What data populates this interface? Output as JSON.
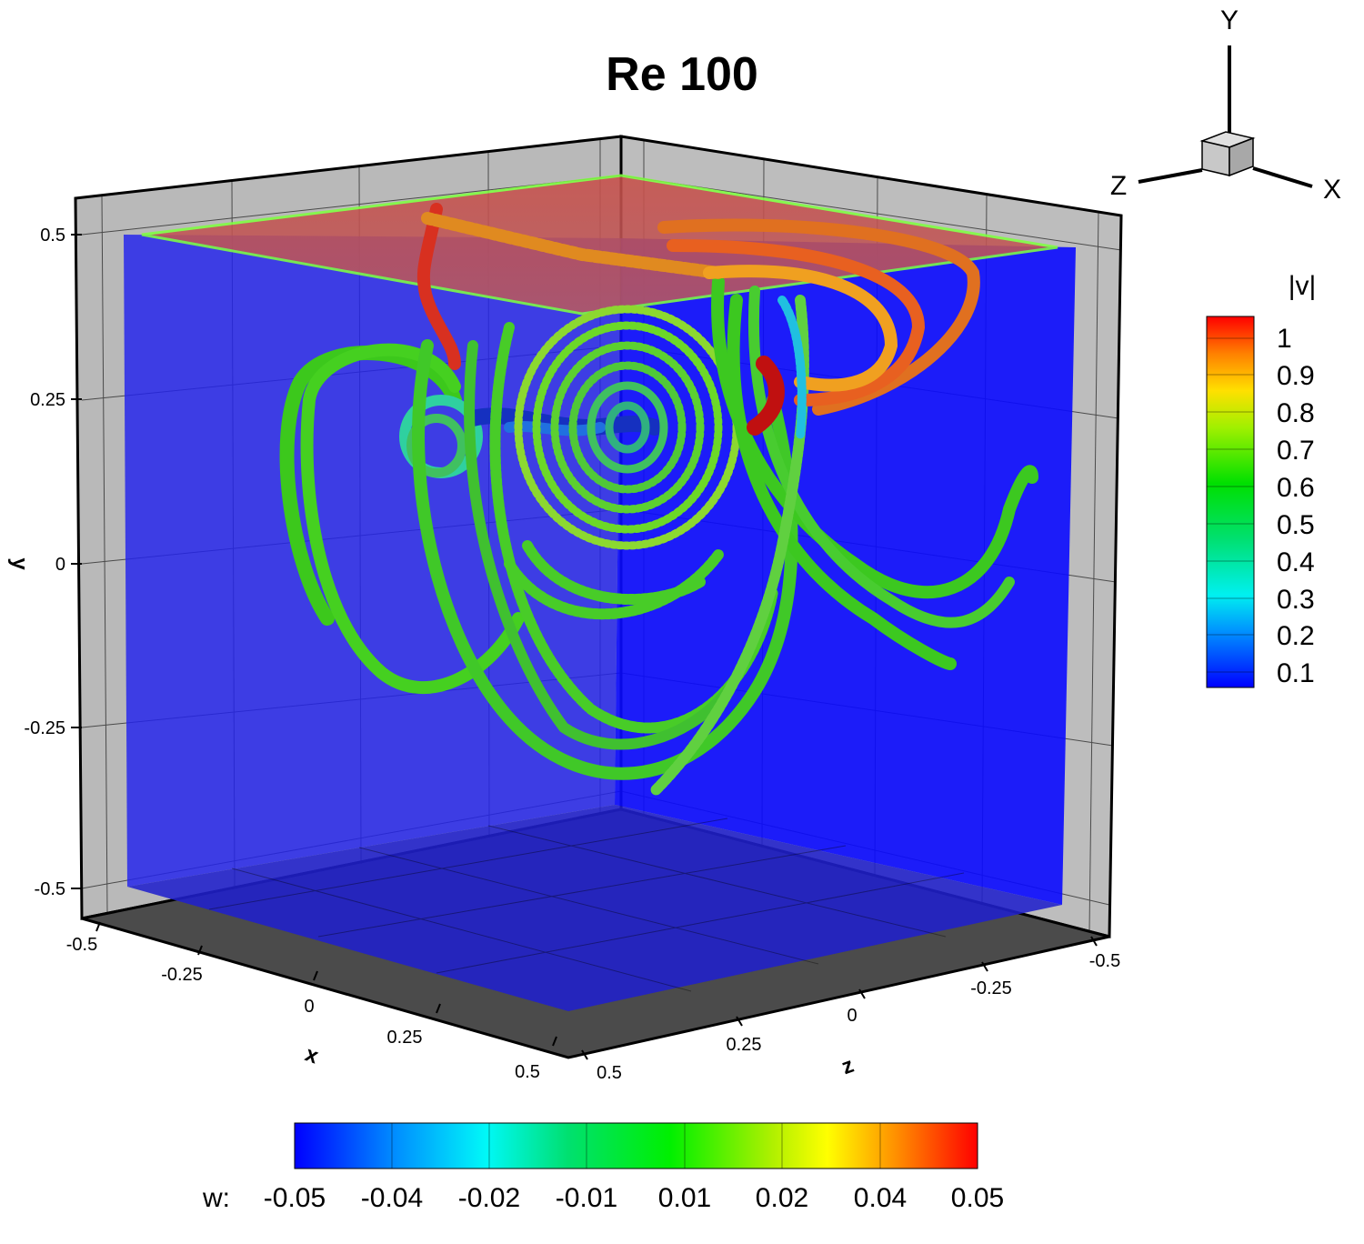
{
  "title": "Re 100",
  "axes": {
    "y_label": "y",
    "x_label": "x",
    "z_label": "z",
    "y_ticks": [
      "0.5",
      "0.25",
      "0",
      "-0.25",
      "-0.5"
    ],
    "x_ticks": [
      "-0.5",
      "-0.25",
      "0",
      "0.25",
      "0.5"
    ],
    "z_ticks": [
      "-0.5",
      "-0.25",
      "0",
      "0.25",
      "0.5"
    ]
  },
  "triad": {
    "y": "Y",
    "z": "Z",
    "x": "X"
  },
  "colorbar_v": {
    "title": "|v|",
    "labels": [
      "1",
      "0.9",
      "0.8",
      "0.7",
      "0.6",
      "0.5",
      "0.4",
      "0.3",
      "0.2",
      "0.1"
    ]
  },
  "colorbar_w": {
    "prefix": "w:",
    "labels": [
      "-0.05",
      "-0.04",
      "-0.02",
      "-0.01",
      "0.01",
      "0.02",
      "0.04",
      "0.05"
    ]
  },
  "colors": {
    "slice_blue": "#1a1aff",
    "lid_red": "#d04a40",
    "floor_dark": "#4a4a4a",
    "wall_gray": "#b8b8b8",
    "streamline_green": "#3fcf1c"
  }
}
